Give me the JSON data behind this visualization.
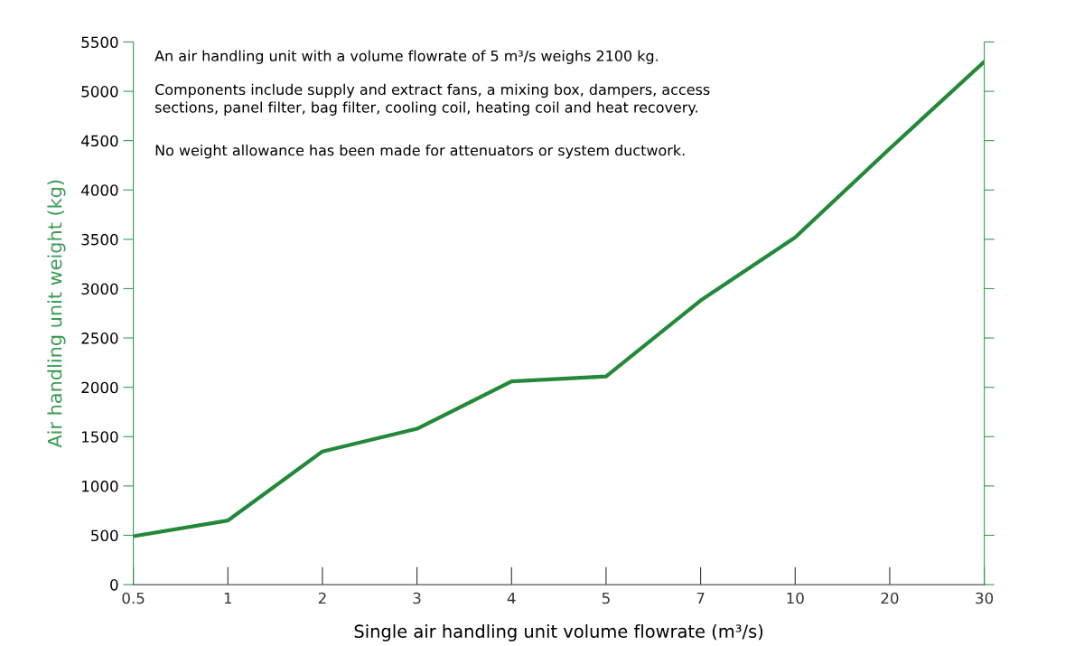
{
  "chart_data": {
    "type": "line",
    "xlabel": "Single air handling unit volume flowrate (m³/s)",
    "ylabel": "Air handling unit weight (kg)",
    "categories": [
      "0.5",
      "1",
      "2",
      "3",
      "4",
      "5",
      "7",
      "10",
      "20",
      "30"
    ],
    "series": [
      {
        "color": "#23893a",
        "values": [
          490,
          650,
          1350,
          1580,
          2060,
          2110,
          2880,
          3520,
          4420,
          5300
        ]
      }
    ],
    "ylim": [
      0,
      5500
    ],
    "yticks": [
      0,
      500,
      1000,
      1500,
      2000,
      2500,
      3000,
      3500,
      4000,
      4500,
      5000,
      5500
    ],
    "grid": false,
    "marker": "none",
    "line_style": "solid",
    "annotations": [
      "An air handling unit with a volume flowrate of 5 m³/s weighs 2100 kg.",
      "Components include supply and extract fans, a mixing box, dampers, access\nsections, panel filter, bag filter, cooling coil, heating coil and heat recovery.",
      "No weight allowance has been made for attenuators or system ductwork."
    ]
  }
}
